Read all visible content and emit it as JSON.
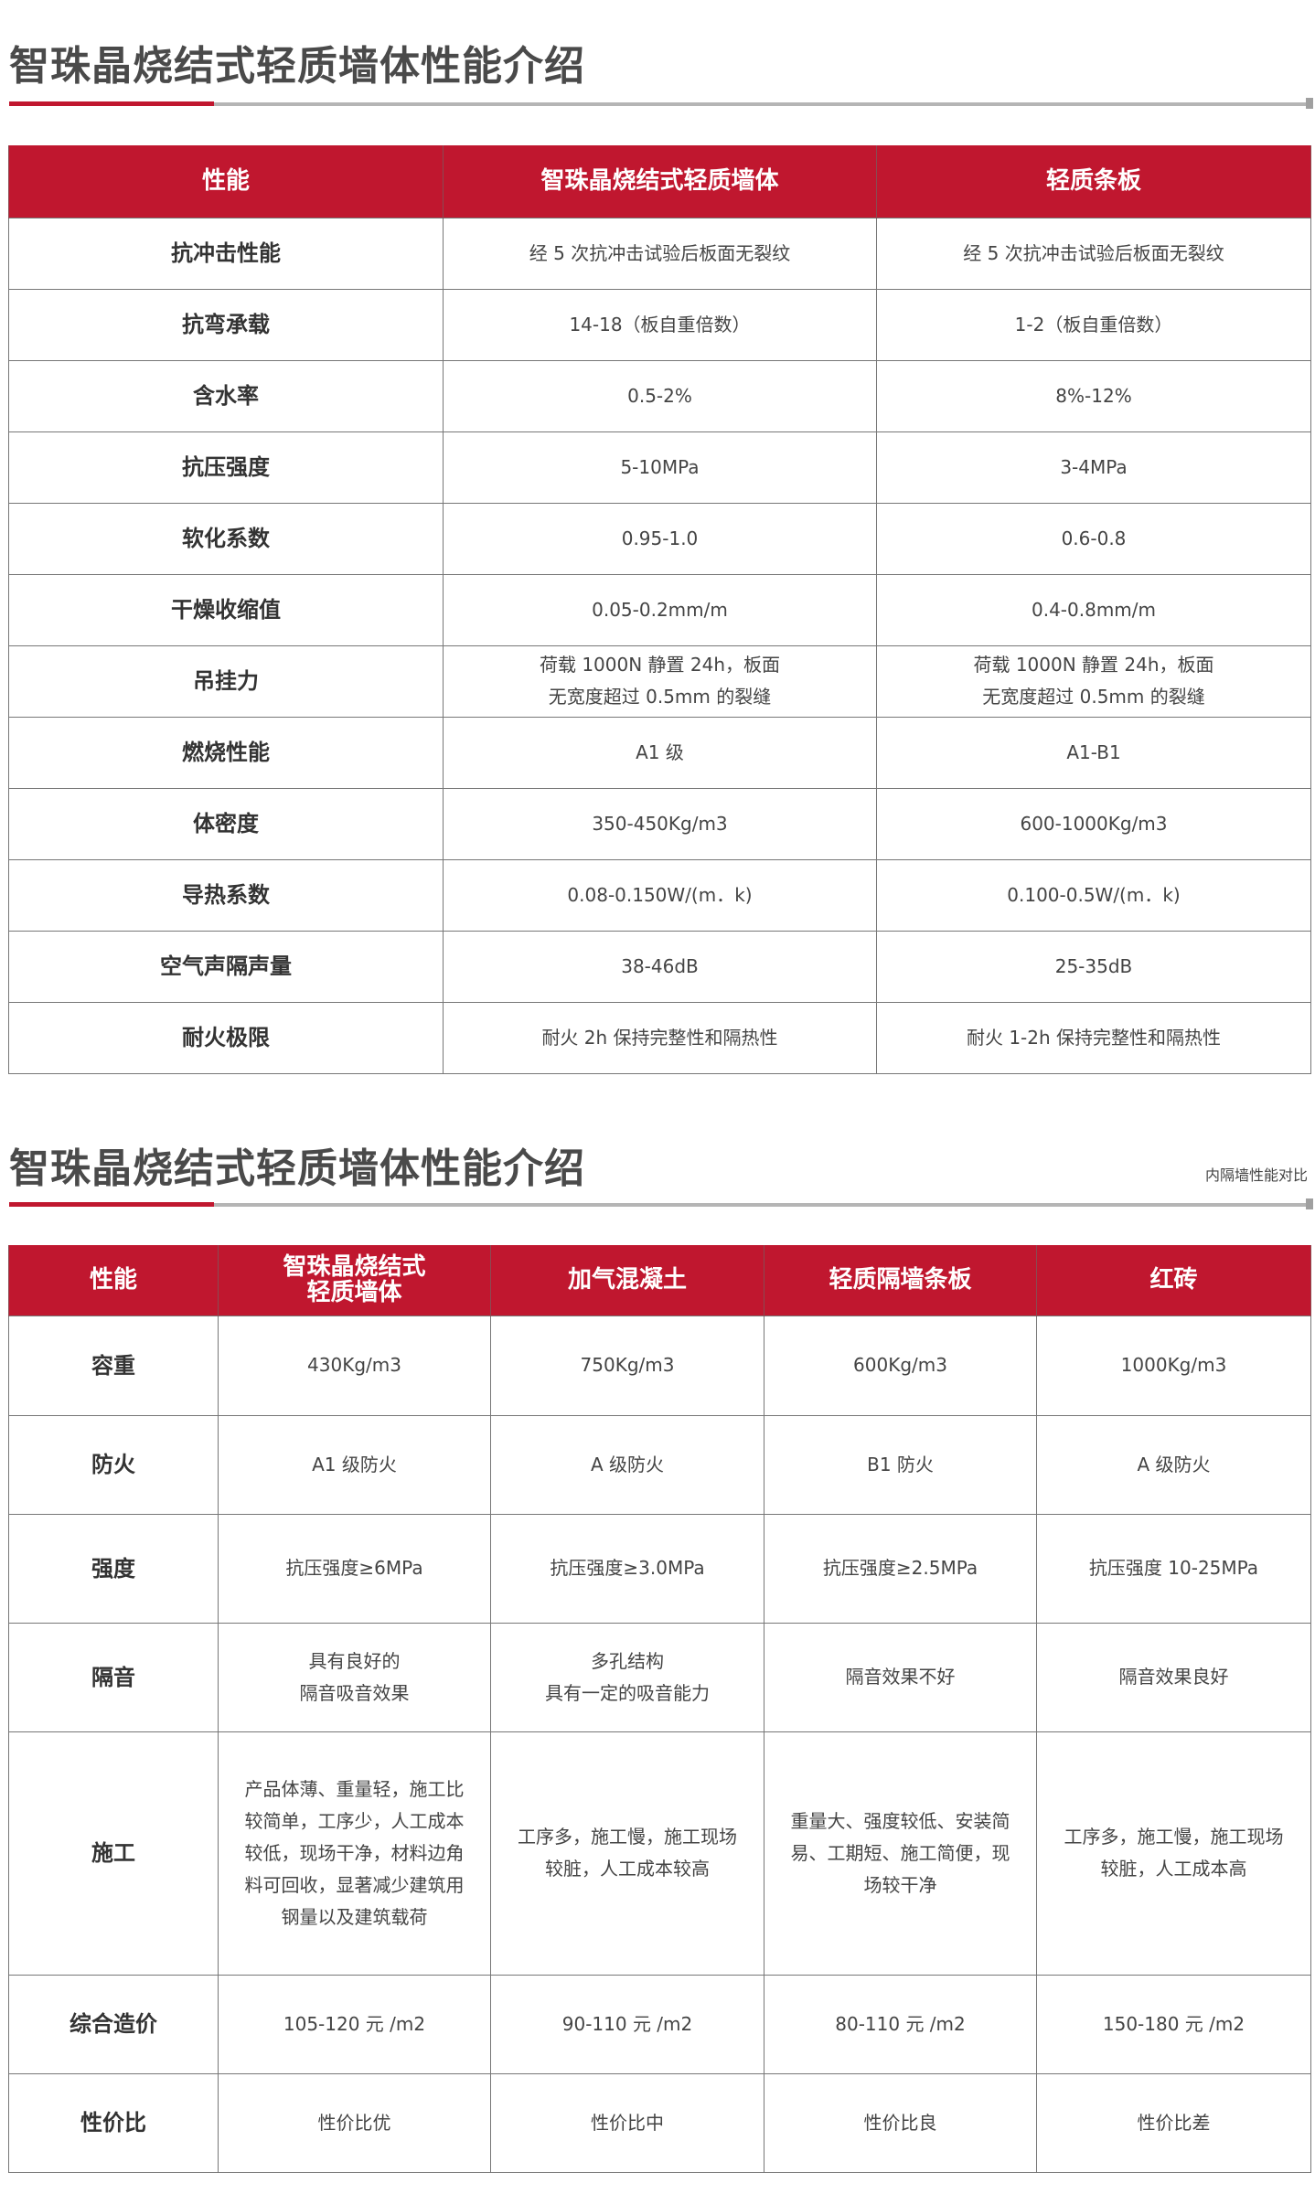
{
  "section1": {
    "title": "智珠晶烧结式轻质墙体性能介绍",
    "headers": [
      "性能",
      "智珠晶烧结式轻质墙体",
      "轻质条板"
    ],
    "rows": [
      [
        "抗冲击性能",
        "经 5 次抗冲击试验后板面无裂纹",
        "经 5 次抗冲击试验后板面无裂纹"
      ],
      [
        "抗弯承载",
        "14-18（板自重倍数）",
        "1-2（板自重倍数）"
      ],
      [
        "含水率",
        "0.5-2%",
        "8%-12%"
      ],
      [
        "抗压强度",
        "5-10MPa",
        "3-4MPa"
      ],
      [
        "软化系数",
        "0.95-1.0",
        "0.6-0.8"
      ],
      [
        "干燥收缩值",
        "0.05-0.2mm/m",
        "0.4-0.8mm/m"
      ],
      [
        "吊挂力",
        "荷载 1000N 静置 24h，板面\n无宽度超过 0.5mm 的裂缝",
        "荷载 1000N 静置 24h，板面\n无宽度超过 0.5mm 的裂缝"
      ],
      [
        "燃烧性能",
        "A1 级",
        "A1-B1"
      ],
      [
        "体密度",
        "350-450Kg/m3",
        "600-1000Kg/m3"
      ],
      [
        "导热系数",
        "0.08-0.150W/(m．k)",
        "0.100-0.5W/(m．k)"
      ],
      [
        "空气声隔声量",
        "38-46dB",
        "25-35dB"
      ],
      [
        "耐火极限",
        "耐火 2h 保持完整性和隔热性",
        "耐火 1-2h 保持完整性和隔热性"
      ]
    ]
  },
  "section2": {
    "title": "智珠晶烧结式轻质墙体性能介绍",
    "subtitle": "内隔墙性能对比",
    "headers": [
      "性能",
      "智珠晶烧结式\n轻质墙体",
      "加气混凝土",
      "轻质隔墙条板",
      "红砖"
    ],
    "rows": [
      [
        "容重",
        "430Kg/m3",
        "750Kg/m3",
        "600Kg/m3",
        "1000Kg/m3"
      ],
      [
        "防火",
        "A1 级防火",
        "A 级防火",
        "B1 防火",
        "A 级防火"
      ],
      [
        "强度",
        "抗压强度≥6MPa",
        "抗压强度≥3.0MPa",
        "抗压强度≥2.5MPa",
        "抗压强度 10-25MPa"
      ],
      [
        "隔音",
        "具有良好的\n隔音吸音效果",
        "多孔结构\n具有一定的吸音能力",
        "隔音效果不好",
        "隔音效果良好"
      ],
      [
        "施工",
        "产品体薄、重量轻，施工比较简单，工序少，人工成本较低，现场干净，材料边角料可回收，显著减少建筑用钢量以及建筑载荷",
        "工序多，施工慢，施工现场较脏，人工成本较高",
        "重量大、强度较低、安装简易、工期短、施工简便，现场较干净",
        "工序多，施工慢，施工现场较脏，人工成本高"
      ],
      [
        "综合造价",
        "105-120 元 /m2",
        "90-110 元 /m2",
        "80-110 元 /m2",
        "150-180 元 /m2"
      ],
      [
        "性价比",
        "性价比优",
        "性价比中",
        "性价比良",
        "性价比差"
      ]
    ]
  },
  "colors": {
    "accent": "#c0172f",
    "rule": "#b5b5b5"
  }
}
